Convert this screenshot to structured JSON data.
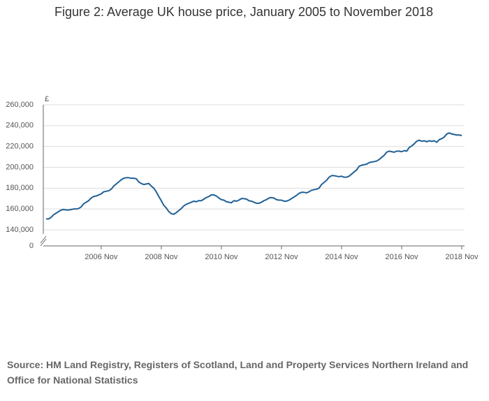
{
  "chart_data": {
    "type": "line",
    "title": "Figure 2: Average UK house price, January 2005 to November 2018",
    "y_label": "£",
    "source": "Source: HM Land Registry, Registers of Scotland, Land and Property Services Northern Ireland and Office for National Statistics",
    "color": "#206095",
    "grid": true,
    "ylim": [
      140000,
      260000
    ],
    "yticks": [
      0,
      {
        "value": 140000,
        "label": "140,000"
      },
      {
        "value": 160000,
        "label": "160,000"
      },
      {
        "value": 180000,
        "label": "180,000"
      },
      {
        "value": 200000,
        "label": "200,000"
      },
      {
        "value": 220000,
        "label": "220,000"
      },
      {
        "value": 240000,
        "label": "240,000"
      },
      {
        "value": 260000,
        "label": "260,000"
      }
    ],
    "categories": [
      null,
      null,
      null,
      null,
      null,
      null,
      null,
      null,
      null,
      null,
      null,
      null,
      null,
      null,
      null,
      null,
      null,
      null,
      null,
      null,
      null,
      null,
      "2006 Nov",
      null,
      null,
      null,
      null,
      null,
      null,
      null,
      null,
      null,
      null,
      null,
      null,
      null,
      null,
      null,
      null,
      null,
      null,
      null,
      null,
      null,
      null,
      null,
      "2008 Nov",
      null,
      null,
      null,
      null,
      null,
      null,
      null,
      null,
      null,
      null,
      null,
      null,
      null,
      null,
      null,
      null,
      null,
      null,
      null,
      null,
      null,
      null,
      null,
      "2010 Nov",
      null,
      null,
      null,
      null,
      null,
      null,
      null,
      null,
      null,
      null,
      null,
      null,
      null,
      null,
      null,
      null,
      null,
      null,
      null,
      null,
      null,
      null,
      null,
      "2012 Nov",
      null,
      null,
      null,
      null,
      null,
      null,
      null,
      null,
      null,
      null,
      null,
      null,
      null,
      null,
      null,
      null,
      null,
      null,
      null,
      null,
      null,
      null,
      null,
      "2014 Nov",
      null,
      null,
      null,
      null,
      null,
      null,
      null,
      null,
      null,
      null,
      null,
      null,
      null,
      null,
      null,
      null,
      null,
      null,
      null,
      null,
      null,
      null,
      null,
      "2016 Nov",
      null,
      null,
      null,
      null,
      null,
      null,
      null,
      null,
      null,
      null,
      null,
      null,
      null,
      null,
      null,
      null,
      null,
      null,
      null,
      null,
      null,
      null,
      null,
      "2018 Nov"
    ],
    "values": [
      150500,
      150500,
      152000,
      154500,
      156000,
      157500,
      159000,
      159500,
      159000,
      159000,
      159500,
      160000,
      160000,
      160500,
      162000,
      165000,
      166500,
      168000,
      170500,
      172000,
      172500,
      173500,
      174500,
      176500,
      177000,
      177500,
      179000,
      182000,
      184000,
      186000,
      188000,
      189500,
      190000,
      190000,
      189500,
      189500,
      189000,
      186000,
      184500,
      183500,
      184000,
      184500,
      182000,
      180000,
      176500,
      172000,
      168000,
      163500,
      161000,
      157500,
      155500,
      155000,
      156500,
      158500,
      160500,
      163000,
      164500,
      165500,
      166500,
      167500,
      167000,
      168000,
      168000,
      169500,
      171000,
      172000,
      173500,
      173500,
      172500,
      170500,
      169000,
      168500,
      167000,
      166500,
      166000,
      168000,
      167500,
      168500,
      170000,
      170000,
      169500,
      168000,
      167500,
      166500,
      165500,
      165500,
      166500,
      168000,
      169000,
      170500,
      171000,
      170500,
      169000,
      168500,
      168500,
      167500,
      167500,
      168500,
      170000,
      171500,
      173000,
      175000,
      176000,
      176000,
      175500,
      176500,
      178000,
      178500,
      179000,
      180000,
      183500,
      185500,
      187500,
      190500,
      192000,
      192000,
      191500,
      191000,
      191500,
      190500,
      190500,
      191500,
      193500,
      195500,
      197500,
      201000,
      202000,
      202500,
      203000,
      204500,
      205000,
      205500,
      206000,
      207500,
      209500,
      211500,
      214500,
      215500,
      215000,
      214500,
      215500,
      215500,
      215000,
      216000,
      215500,
      219000,
      220500,
      222500,
      225000,
      226000,
      225000,
      225500,
      224500,
      225500,
      225000,
      225500,
      224000,
      226500,
      227500,
      229000,
      232000,
      233000,
      232000,
      231500,
      231000,
      231000,
      230500
    ]
  }
}
